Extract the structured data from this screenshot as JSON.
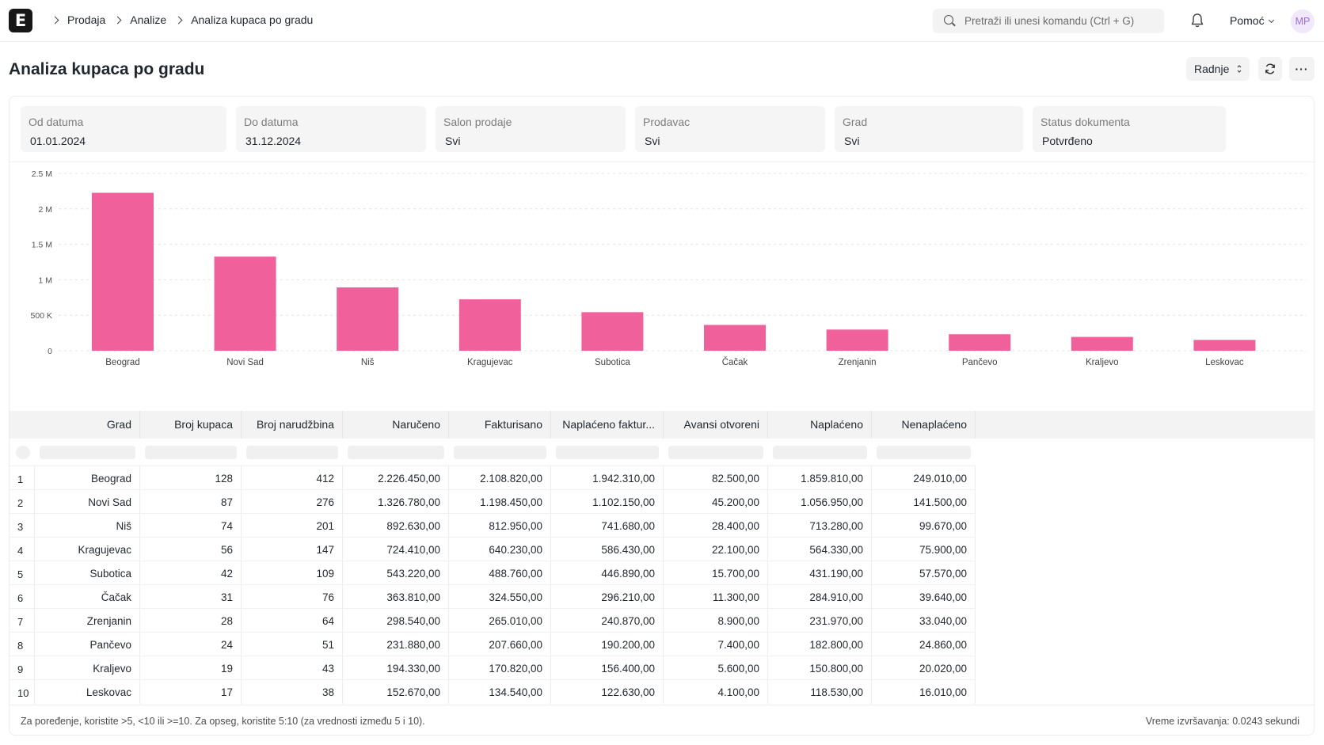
{
  "navbar": {
    "logo_letter": "E",
    "breadcrumbs": [
      "Prodaja",
      "Analize",
      "Analiza kupaca po gradu"
    ],
    "search_placeholder": "Pretraži ili unesi komandu (Ctrl + G)",
    "help_label": "Pomoć",
    "avatar_initials": "MP"
  },
  "page": {
    "title": "Analiza kupaca po gradu",
    "actions_label": "Radnje",
    "more_label": "···"
  },
  "filters": [
    {
      "label": "Od datuma",
      "value": "01.01.2024"
    },
    {
      "label": "Do datuma",
      "value": "31.12.2024"
    },
    {
      "label": "Salon prodaje",
      "value": "Svi"
    },
    {
      "label": "Prodavac",
      "value": "Svi"
    },
    {
      "label": "Grad",
      "value": "Svi"
    },
    {
      "label": "Status dokumenta",
      "value": "Potvrđeno"
    }
  ],
  "chart_data": {
    "type": "bar",
    "categories": [
      "Beograd",
      "Novi Sad",
      "Niš",
      "Kragujevac",
      "Subotica",
      "Čačak",
      "Zrenjanin",
      "Pančevo",
      "Kraljevo",
      "Leskovac"
    ],
    "values": [
      2226450,
      1326780,
      892630,
      724410,
      543220,
      363810,
      298540,
      231880,
      194330,
      152670
    ],
    "y_ticks": [
      0,
      500000,
      1000000,
      1500000,
      2000000,
      2500000
    ],
    "y_tick_labels": [
      "0",
      "500 K",
      "1 M",
      "1.5 M",
      "2 M",
      "2.5 M"
    ],
    "ylim": [
      0,
      2500000
    ],
    "grid": true,
    "bar_color": "#f0609b"
  },
  "table": {
    "columns": [
      "Grad",
      "Broj kupaca",
      "Broj narudžbina",
      "Naručeno",
      "Fakturisano",
      "Naplaćeno faktur...",
      "Avansi otvoreni",
      "Naplaćeno",
      "Nenaplaćeno"
    ],
    "rows": [
      [
        "1",
        "Beograd",
        "128",
        "412",
        "2.226.450,00",
        "2.108.820,00",
        "1.942.310,00",
        "82.500,00",
        "1.859.810,00",
        "249.010,00"
      ],
      [
        "2",
        "Novi Sad",
        "87",
        "276",
        "1.326.780,00",
        "1.198.450,00",
        "1.102.150,00",
        "45.200,00",
        "1.056.950,00",
        "141.500,00"
      ],
      [
        "3",
        "Niš",
        "74",
        "201",
        "892.630,00",
        "812.950,00",
        "741.680,00",
        "28.400,00",
        "713.280,00",
        "99.670,00"
      ],
      [
        "4",
        "Kragujevac",
        "56",
        "147",
        "724.410,00",
        "640.230,00",
        "586.430,00",
        "22.100,00",
        "564.330,00",
        "75.900,00"
      ],
      [
        "5",
        "Subotica",
        "42",
        "109",
        "543.220,00",
        "488.760,00",
        "446.890,00",
        "15.700,00",
        "431.190,00",
        "57.570,00"
      ],
      [
        "6",
        "Čačak",
        "31",
        "76",
        "363.810,00",
        "324.550,00",
        "296.210,00",
        "11.300,00",
        "284.910,00",
        "39.640,00"
      ],
      [
        "7",
        "Zrenjanin",
        "28",
        "64",
        "298.540,00",
        "265.010,00",
        "240.870,00",
        "8.900,00",
        "231.970,00",
        "33.040,00"
      ],
      [
        "8",
        "Pančevo",
        "24",
        "51",
        "231.880,00",
        "207.660,00",
        "190.200,00",
        "7.400,00",
        "182.800,00",
        "24.860,00"
      ],
      [
        "9",
        "Kraljevo",
        "19",
        "43",
        "194.330,00",
        "170.820,00",
        "156.400,00",
        "5.600,00",
        "150.800,00",
        "20.020,00"
      ],
      [
        "10",
        "Leskovac",
        "17",
        "38",
        "152.670,00",
        "134.540,00",
        "122.630,00",
        "4.100,00",
        "118.530,00",
        "16.010,00"
      ]
    ]
  },
  "footer": {
    "hint": "Za poređenje, koristite >5, <10 ili >=10. Za opseg, koristite 5:10 (za vrednosti između 5 i 10).",
    "execution_time": "Vreme izvršavanja: 0.0243 sekundi"
  }
}
